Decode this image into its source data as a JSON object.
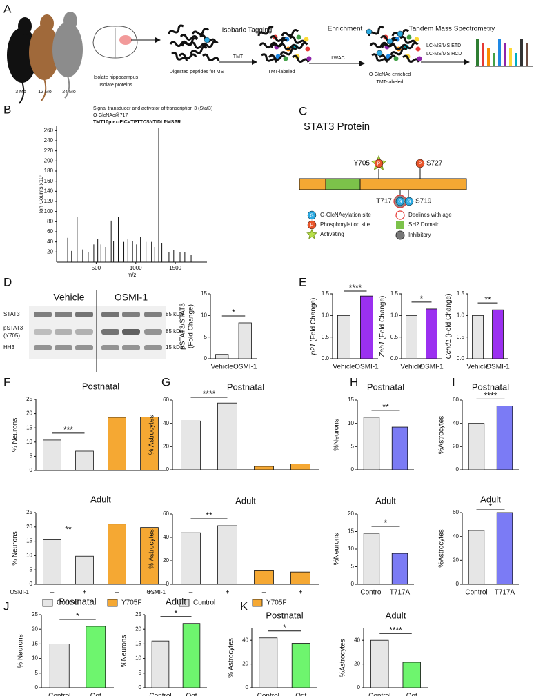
{
  "figure": {
    "panel_labels": [
      "A",
      "B",
      "C",
      "D",
      "E",
      "F",
      "G",
      "H",
      "I",
      "J",
      "K"
    ],
    "workflow": {
      "ages": [
        "3 Mo",
        "12 Mo",
        "24 Mo"
      ],
      "isolate": [
        "Isolate hippocampus",
        "Isolate proteins"
      ],
      "stage_titles": [
        "Isobaric Tagging",
        "Enrichment",
        "Tandem Mass Spectrometry"
      ],
      "digested": "Digested peptides for MS",
      "arrow1": "TMT",
      "tmt_labeled": "TMT-labeled",
      "arrow2": "LWAC",
      "enriched": [
        "O-GlcNAc enriched",
        "TMT-labeled"
      ],
      "methods": [
        "LC-MS/MS ETD",
        "LC-MS/MS HCD"
      ]
    },
    "stat3": {
      "title": "STAT3 Protein",
      "sites": [
        "Y705",
        "S727",
        "T717",
        "S719"
      ],
      "icon_glcnac": "G",
      "icon_phospho": "P",
      "legend": [
        "O-GlcNAcylation site",
        "Declines with age",
        "Phosphorylation site",
        "SH2 Domain",
        "Activating",
        "Inhibitory"
      ]
    },
    "blot": {
      "conditions": [
        "Vehicle",
        "OSMI-1"
      ],
      "rows": [
        "STAT3",
        "pSTAT3",
        "(Y705)",
        "HH3"
      ],
      "sizes": [
        "85 kDa",
        "85 kDa",
        "15 kDa"
      ]
    }
  },
  "chart_data": [
    {
      "type": "spectrum",
      "title": "Signal transducer and activator of transcription 3 (Stat3)",
      "subtitle": "O-GlcNAc@717",
      "peptide": "TMT10plex-FICVTPTTCSNTIDLPMSPR",
      "xlabel": "m/z",
      "ylabel": "Ion Counts x10³",
      "x": [
        140,
        190,
        260,
        330,
        400,
        470,
        520,
        560,
        620,
        690,
        720,
        780,
        850,
        900,
        960,
        1010,
        1060,
        1130,
        1200,
        1240,
        1290,
        1330,
        1420,
        1480,
        1560,
        1620,
        1700
      ],
      "values": [
        48,
        22,
        90,
        25,
        20,
        35,
        45,
        35,
        30,
        82,
        42,
        90,
        40,
        45,
        42,
        35,
        50,
        40,
        40,
        30,
        265,
        38,
        20,
        24,
        20,
        20,
        15
      ],
      "xlim": [
        0,
        1900
      ],
      "ylim": [
        0,
        270
      ],
      "xticks": [
        500,
        1000,
        1500
      ],
      "yticks": [
        20,
        40,
        60,
        80,
        100,
        120,
        140,
        160,
        180,
        200,
        220,
        240,
        260
      ],
      "color": "#111111"
    },
    {
      "type": "bar",
      "ylabel": [
        "pSTAT3/STAT3",
        "(Fold Change)"
      ],
      "categories": [
        "Vehicle",
        "OSMI-1"
      ],
      "values": [
        1.0,
        8.3
      ],
      "colors": [
        "#e6e6e6",
        "#e6e6e6"
      ],
      "ylim": [
        0,
        15
      ],
      "yticks": [
        0,
        5,
        10,
        15
      ],
      "significance": "*"
    },
    {
      "type": "bar",
      "ylabel_gene": "p21",
      "ylabel": "(Fold Change)",
      "categories": [
        "Vehicle",
        "OSMI-1"
      ],
      "values": [
        1.0,
        1.45
      ],
      "colors": [
        "#e6e6e6",
        "#9b30f0"
      ],
      "ylim": [
        0,
        1.5
      ],
      "yticks": [
        {
          "value": 0,
          "label": "0.0"
        },
        0.5,
        {
          "value": 1,
          "label": "1.0"
        },
        1.5
      ],
      "significance": "****"
    },
    {
      "type": "bar",
      "ylabel_gene": "Zeb1",
      "ylabel": "(Fold Change)",
      "categories": [
        "Vehicle",
        "OSMI-1"
      ],
      "values": [
        1.0,
        1.15
      ],
      "colors": [
        "#e6e6e6",
        "#9b30f0"
      ],
      "ylim": [
        0,
        1.5
      ],
      "yticks": [
        {
          "value": 0,
          "label": "0.0"
        },
        0.5,
        {
          "value": 1,
          "label": "1.0"
        },
        1.5
      ],
      "significance": "*"
    },
    {
      "type": "bar",
      "ylabel_gene": "Ccnd1",
      "ylabel": "(Fold Change)",
      "categories": [
        "Vehicle",
        "OSMI-1"
      ],
      "values": [
        1.0,
        1.13
      ],
      "colors": [
        "#e6e6e6",
        "#9b30f0"
      ],
      "ylim": [
        0,
        1.5
      ],
      "yticks": [
        {
          "value": 0,
          "label": "0.0"
        },
        0.5,
        {
          "value": 1,
          "label": "1.0"
        },
        1.5
      ],
      "significance": "**"
    },
    {
      "type": "bar",
      "title": "Postnatal",
      "ylabel": "% Neurons",
      "categories": [
        null,
        null
      ],
      "series": [
        {
          "color": "#e6e6e6",
          "values": [
            10.7,
            6.8
          ]
        },
        {
          "color": "#f5a833",
          "values": [
            18.7,
            18.8
          ]
        }
      ],
      "ylim": [
        0,
        25
      ],
      "yticks": [
        0,
        5,
        10,
        15,
        20,
        25
      ],
      "significance": "***"
    },
    {
      "type": "bar",
      "title": "Adult",
      "ylabel": "% Neurons",
      "categories": [
        "–",
        "+"
      ],
      "category_axis_label": "OSMI-1",
      "series": [
        {
          "name": "Control",
          "color": "#e6e6e6",
          "values": [
            15.5,
            9.8
          ]
        },
        {
          "name": "Y705F",
          "color": "#f5a833",
          "values": [
            21.0,
            19.8
          ]
        }
      ],
      "ylim": [
        0,
        25
      ],
      "yticks": [
        0,
        5,
        10,
        15,
        20,
        25
      ],
      "significance": "**"
    },
    {
      "type": "bar",
      "title": "Postnatal",
      "ylabel": "% Astrocytes",
      "categories": [
        null,
        null
      ],
      "series": [
        {
          "color": "#e6e6e6",
          "values": [
            42,
            57.5
          ]
        },
        {
          "color": "#f5a833",
          "values": [
            3,
            5
          ]
        }
      ],
      "ylim": [
        0,
        60
      ],
      "yticks": [
        0,
        20,
        40,
        60
      ],
      "significance": "****"
    },
    {
      "type": "bar",
      "title": "Adult",
      "ylabel": "% Astrocytes",
      "categories": [
        "–",
        "+"
      ],
      "category_axis_label": "OSMI-1",
      "series": [
        {
          "name": "Control",
          "color": "#e6e6e6",
          "values": [
            44,
            50
          ]
        },
        {
          "name": "Y705F",
          "color": "#f5a833",
          "values": [
            11.5,
            10.5
          ]
        }
      ],
      "ylim": [
        0,
        60
      ],
      "yticks": [
        0,
        20,
        40,
        60
      ],
      "significance": "**"
    },
    {
      "type": "bar",
      "title": "Postnatal",
      "ylabel": "%Neurons",
      "categories": [
        null,
        null
      ],
      "values": [
        11.3,
        9.2
      ],
      "colors": [
        "#e6e6e6",
        "#7b7bf5"
      ],
      "ylim": [
        0,
        15
      ],
      "yticks": [
        0,
        5,
        10,
        15
      ],
      "significance": "**"
    },
    {
      "type": "bar",
      "title": "Adult",
      "ylabel": "%Neurons",
      "categories": [
        "Control",
        "T717A"
      ],
      "values": [
        14.5,
        8.8
      ],
      "colors": [
        "#e6e6e6",
        "#7b7bf5"
      ],
      "ylim": [
        0,
        20
      ],
      "yticks": [
        0,
        5,
        10,
        15,
        20
      ],
      "significance": "*"
    },
    {
      "type": "bar",
      "title": "Postnatal",
      "ylabel": "%Astrocytes",
      "categories": [
        null,
        null
      ],
      "values": [
        40,
        55
      ],
      "colors": [
        "#e6e6e6",
        "#7b7bf5"
      ],
      "ylim": [
        0,
        60
      ],
      "yticks": [
        0,
        20,
        40,
        60
      ],
      "significance": "****"
    },
    {
      "type": "bar",
      "title": "Adult",
      "ylabel": "%Astrocytes",
      "categories": [
        "Control",
        "T717A"
      ],
      "values": [
        45,
        60
      ],
      "colors": [
        "#e6e6e6",
        "#7b7bf5"
      ],
      "ylim": [
        0,
        60
      ],
      "yticks": [
        0,
        20,
        40,
        60
      ],
      "significance": "*"
    },
    {
      "type": "bar",
      "title": "Postnatal",
      "ylabel": "% Neurons",
      "categories": [
        "Control",
        "Ogt"
      ],
      "values": [
        15,
        21
      ],
      "colors": [
        "#e6e6e6",
        "#6ef56e"
      ],
      "ylim": [
        0,
        25
      ],
      "yticks": [
        0,
        5,
        10,
        15,
        20,
        25
      ],
      "significance": "*"
    },
    {
      "type": "bar",
      "title": "Adult",
      "ylabel": "%Neurons",
      "categories": [
        "Control",
        "Ogt"
      ],
      "values": [
        16,
        22
      ],
      "colors": [
        "#e6e6e6",
        "#6ef56e"
      ],
      "ylim": [
        0,
        25
      ],
      "yticks": [
        0,
        5,
        10,
        15,
        20,
        25
      ],
      "significance": "*"
    },
    {
      "type": "bar",
      "title": "Postnatal",
      "ylabel": "% Astrocytes",
      "categories": [
        "Control",
        "Ogt"
      ],
      "values": [
        42,
        37.5
      ],
      "colors": [
        "#e6e6e6",
        "#6ef56e"
      ],
      "ylim": [
        0,
        50
      ],
      "yticks": [
        0,
        20,
        40
      ],
      "significance": "*"
    },
    {
      "type": "bar",
      "title": "Adult",
      "ylabel": "%Astrocytes",
      "categories": [
        "Control",
        "Ogt"
      ],
      "values": [
        40,
        21.5
      ],
      "colors": [
        "#e6e6e6",
        "#6ef56e"
      ],
      "ylim": [
        0,
        50
      ],
      "yticks": [
        0,
        20,
        40
      ],
      "significance": "****"
    }
  ]
}
